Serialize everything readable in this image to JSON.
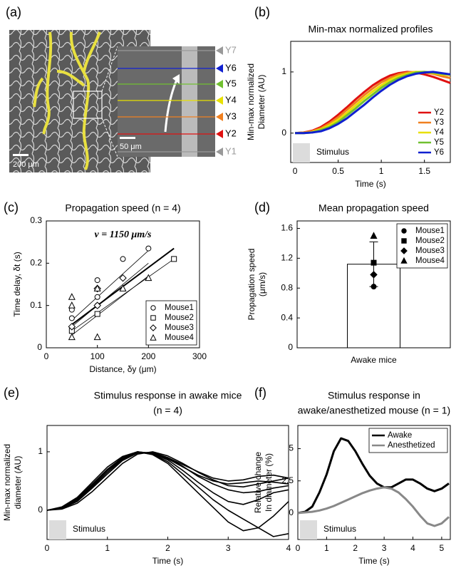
{
  "image_panel": {
    "panel": "(a)",
    "scale_bars": [
      "200 μm",
      "50 μm"
    ],
    "markers": [
      {
        "label": "Y7",
        "color": "#999999"
      },
      {
        "label": "Y6",
        "color": "#1020d0"
      },
      {
        "label": "Y5",
        "color": "#70c030"
      },
      {
        "label": "Y4",
        "color": "#e8e000"
      },
      {
        "label": "Y3",
        "color": "#f08020"
      },
      {
        "label": "Y2",
        "color": "#e01010"
      },
      {
        "label": "Y1",
        "color": "#999999"
      }
    ]
  },
  "chart_data": [
    {
      "type": "line",
      "panel": "(b)",
      "title": "Min-max normalized profiles",
      "xlabel": "Time (s)",
      "ylabel": [
        "Min-max normalized",
        "Diameter (AU)"
      ],
      "annotation": "Stimulus",
      "xlim": [
        -0.05,
        1.8
      ],
      "ylim": [
        -0.48,
        1.5
      ],
      "xticks": [
        0,
        0.5,
        1,
        1.5
      ],
      "yticks": [
        0,
        1
      ],
      "legend": "lower right",
      "legend_frame": false,
      "line_width": 3,
      "x": [
        0,
        0.1,
        0.2,
        0.3,
        0.4,
        0.5,
        0.6,
        0.7,
        0.8,
        0.9,
        1.0,
        1.1,
        1.2,
        1.3,
        1.4,
        1.5,
        1.6,
        1.7,
        1.8
      ],
      "series": [
        {
          "name": "Y2",
          "color": "#e01010",
          "values": [
            0,
            0.01,
            0.04,
            0.1,
            0.19,
            0.3,
            0.42,
            0.55,
            0.67,
            0.78,
            0.87,
            0.94,
            0.98,
            1.0,
            0.99,
            0.96,
            0.92,
            0.87,
            0.82
          ]
        },
        {
          "name": "Y3",
          "color": "#f08020",
          "values": [
            0,
            0.01,
            0.03,
            0.08,
            0.16,
            0.26,
            0.38,
            0.5,
            0.62,
            0.73,
            0.83,
            0.9,
            0.96,
            0.99,
            1.0,
            0.99,
            0.97,
            0.93,
            0.9
          ]
        },
        {
          "name": "Y4",
          "color": "#e8e000",
          "values": [
            0,
            0,
            0.02,
            0.06,
            0.13,
            0.22,
            0.33,
            0.45,
            0.57,
            0.68,
            0.78,
            0.87,
            0.93,
            0.97,
            1.0,
            1.0,
            0.98,
            0.96,
            0.95
          ]
        },
        {
          "name": "Y5",
          "color": "#70c030",
          "values": [
            0,
            0,
            0.01,
            0.05,
            0.1,
            0.18,
            0.29,
            0.4,
            0.52,
            0.63,
            0.74,
            0.83,
            0.9,
            0.95,
            0.99,
            1.0,
            0.99,
            0.97,
            0.96
          ]
        },
        {
          "name": "Y6",
          "color": "#1020d0",
          "values": [
            0,
            0,
            0.01,
            0.03,
            0.08,
            0.15,
            0.24,
            0.35,
            0.46,
            0.58,
            0.69,
            0.79,
            0.87,
            0.93,
            0.97,
            0.99,
            1.0,
            0.98,
            0.96
          ]
        }
      ]
    },
    {
      "type": "scatter",
      "panel": "(c)",
      "title": "Propagation speed (n = 4)",
      "annotation": "v = 1150 μm/s",
      "xlabel": "Distance, δy (μm)",
      "ylabel": [
        "Time delay, δt (s)"
      ],
      "xlim": [
        0,
        300
      ],
      "ylim": [
        0,
        0.3
      ],
      "xticks": [
        0,
        100,
        200,
        300
      ],
      "yticks": [
        0,
        0.1,
        0.2,
        0.3
      ],
      "legend": "lower right",
      "legend_frame": true,
      "open_markers": true,
      "series": [
        {
          "name": "Mouse1",
          "marker": "circle",
          "color": "#000000",
          "x": [
            50,
            50,
            100,
            100,
            100,
            150,
            200
          ],
          "values": [
            0.09,
            0.07,
            0.16,
            0.12,
            0.1,
            0.21,
            0.235
          ]
        },
        {
          "name": "Mouse2",
          "marker": "square",
          "color": "#000000",
          "x": [
            50,
            100,
            250
          ],
          "values": [
            0.04,
            0.08,
            0.21
          ]
        },
        {
          "name": "Mouse3",
          "marker": "diamond",
          "color": "#000000",
          "x": [
            50,
            100,
            100,
            150
          ],
          "values": [
            0.05,
            0.14,
            0.1,
            0.165
          ]
        },
        {
          "name": "Mouse4",
          "marker": "triangle",
          "color": "#000000",
          "x": [
            50,
            50,
            50,
            100,
            100,
            150,
            200
          ],
          "values": [
            0.12,
            0.1,
            0.025,
            0.025,
            0.14,
            0.14,
            0.165
          ]
        }
      ],
      "fit_lines": [
        {
          "x": [
            50,
            200
          ],
          "y": [
            0.065,
            0.23
          ]
        },
        {
          "x": [
            50,
            250
          ],
          "y": [
            0.04,
            0.21
          ]
        },
        {
          "x": [
            50,
            200
          ],
          "y": [
            0.05,
            0.2
          ]
        },
        {
          "x": [
            50,
            200
          ],
          "y": [
            0.03,
            0.17
          ]
        }
      ],
      "mean_fit": {
        "x": [
          50,
          250
        ],
        "y": [
          0.055,
          0.235
        ]
      }
    },
    {
      "type": "bar",
      "panel": "(d)",
      "title": "Mean propagation speed",
      "ylabel": [
        "Propagation speed",
        "(μm/s)"
      ],
      "categories": [
        "Awake mice"
      ],
      "values": [
        1.12
      ],
      "errors": [
        0.3
      ],
      "color": "#ffffff",
      "ylim": [
        0,
        1.7
      ],
      "yticks": [
        0,
        0.4,
        0.8,
        1.2,
        1.6
      ],
      "legend": "upper right",
      "legend_frame": true,
      "points": [
        {
          "name": "Mouse1",
          "marker": "circle",
          "color": "#000000",
          "values": [
            0.82
          ]
        },
        {
          "name": "Mouse2",
          "marker": "square",
          "color": "#000000",
          "values": [
            1.14
          ]
        },
        {
          "name": "Mouse3",
          "marker": "diamond",
          "color": "#000000",
          "values": [
            0.98
          ]
        },
        {
          "name": "Mouse4",
          "marker": "triangle",
          "color": "#000000",
          "values": [
            1.5
          ]
        }
      ]
    },
    {
      "type": "line",
      "panel": "(e)",
      "title": [
        "Stimulus response in awake mice",
        "(n = 4)"
      ],
      "xlabel": "Time (s)",
      "ylabel": [
        "Min-max normalized",
        "diameter (AU)"
      ],
      "annotation": "Stimulus",
      "xlim": [
        0,
        4
      ],
      "ylim": [
        -0.5,
        1.45
      ],
      "xticks": [
        0,
        1,
        2,
        3,
        4
      ],
      "yticks": [
        0,
        1
      ],
      "line_width": 1.6,
      "x": [
        0,
        0.25,
        0.5,
        0.75,
        1,
        1.25,
        1.5,
        1.75,
        2,
        2.25,
        2.5,
        2.75,
        3,
        3.25,
        3.5,
        3.75,
        4
      ],
      "series": [
        {
          "color": "#000000",
          "values": [
            0,
            0.05,
            0.2,
            0.45,
            0.7,
            0.9,
            1.0,
            0.95,
            0.8,
            0.55,
            0.3,
            0.05,
            -0.2,
            -0.35,
            -0.3,
            -0.1,
            0.15
          ]
        },
        {
          "color": "#000000",
          "values": [
            0,
            0.03,
            0.15,
            0.38,
            0.62,
            0.85,
            0.98,
            0.99,
            0.9,
            0.75,
            0.58,
            0.45,
            0.35,
            0.3,
            0.32,
            0.38,
            0.42
          ]
        },
        {
          "color": "#000000",
          "values": [
            0,
            0.06,
            0.22,
            0.48,
            0.74,
            0.92,
            1.0,
            0.97,
            0.86,
            0.68,
            0.48,
            0.3,
            0.15,
            0.1,
            0.18,
            0.3,
            0.35
          ]
        },
        {
          "color": "#000000",
          "values": [
            0,
            0.02,
            0.12,
            0.32,
            0.56,
            0.8,
            0.96,
            1.0,
            0.93,
            0.8,
            0.65,
            0.52,
            0.42,
            0.4,
            0.45,
            0.5,
            0.55
          ]
        },
        {
          "color": "#000000",
          "values": [
            0,
            0.04,
            0.18,
            0.42,
            0.68,
            0.88,
            0.99,
            0.96,
            0.83,
            0.62,
            0.4,
            0.18,
            0.0,
            -0.15,
            -0.3,
            -0.45,
            -0.4
          ]
        },
        {
          "color": "#000000",
          "values": [
            0,
            0.05,
            0.2,
            0.44,
            0.7,
            0.9,
            1.0,
            0.97,
            0.88,
            0.74,
            0.6,
            0.5,
            0.45,
            0.47,
            0.5,
            0.48,
            0.45
          ]
        },
        {
          "color": "#000000",
          "values": [
            0,
            0.03,
            0.16,
            0.4,
            0.65,
            0.87,
            0.99,
            0.98,
            0.9,
            0.78,
            0.66,
            0.55,
            0.5,
            0.52,
            0.58,
            0.6,
            0.55
          ]
        }
      ]
    },
    {
      "type": "line",
      "panel": "(f)",
      "title": [
        "Stimulus response in",
        "awake/anesthetized mouse (n = 1)"
      ],
      "xlabel": "Time (s)",
      "ylabel": [
        "Relative change",
        "In diameter (%)"
      ],
      "annotation": "Stimulus",
      "xlim": [
        0,
        5.3
      ],
      "ylim": [
        -2.05,
        6.8
      ],
      "xticks": [
        0,
        1,
        2,
        3,
        4,
        5
      ],
      "yticks": [
        0,
        2.5,
        5
      ],
      "legend": "upper right",
      "legend_frame": true,
      "line_width": 3,
      "x": [
        0,
        0.25,
        0.5,
        0.75,
        1,
        1.25,
        1.5,
        1.75,
        2,
        2.25,
        2.5,
        2.75,
        3,
        3.25,
        3.5,
        3.75,
        4,
        4.25,
        4.5,
        4.75,
        5,
        5.25
      ],
      "series": [
        {
          "name": "Awake",
          "color": "#000000",
          "values": [
            0,
            0.1,
            0.5,
            1.6,
            3.0,
            4.8,
            5.8,
            5.6,
            4.8,
            3.8,
            2.9,
            2.3,
            2.0,
            2.0,
            2.3,
            2.6,
            2.6,
            2.3,
            1.9,
            1.7,
            1.9,
            2.3
          ]
        },
        {
          "name": "Anesthetized",
          "color": "#888888",
          "values": [
            0,
            0.05,
            0.1,
            0.2,
            0.35,
            0.55,
            0.8,
            1.05,
            1.3,
            1.55,
            1.75,
            1.9,
            2.0,
            1.9,
            1.6,
            1.1,
            0.5,
            -0.2,
            -0.8,
            -1.0,
            -0.8,
            -0.3
          ]
        }
      ]
    }
  ]
}
